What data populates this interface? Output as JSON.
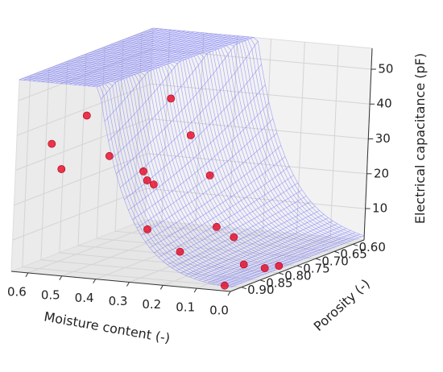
{
  "chart_data": {
    "type": "scatter",
    "subtype": "3d-surface-with-scatter",
    "xlabel": "Moisture content (-)",
    "ylabel": "Porosity (-)",
    "zlabel": "Electrical capacitance (pF)",
    "x_ticks": [
      "0.0",
      "0.1",
      "0.2",
      "0.3",
      "0.4",
      "0.5",
      "0.6"
    ],
    "y_ticks": [
      "0.60",
      "0.65",
      "0.70",
      "0.75",
      "0.80",
      "0.85",
      "0.90"
    ],
    "z_ticks": [
      "10",
      "20",
      "30",
      "40",
      "50"
    ],
    "xlim": [
      0,
      0.65
    ],
    "ylim": [
      0.57,
      0.93
    ],
    "zlim": [
      1,
      56
    ],
    "grid": true,
    "surface_color": "#6b6bff",
    "point_color": "#e8001c",
    "points": [
      {
        "x": 0.5,
        "y": 0.88,
        "z": 45
      },
      {
        "x": 0.34,
        "y": 0.8,
        "z": 48
      },
      {
        "x": 0.6,
        "y": 0.88,
        "z": 36
      },
      {
        "x": 0.45,
        "y": 0.86,
        "z": 33
      },
      {
        "x": 0.32,
        "y": 0.76,
        "z": 36
      },
      {
        "x": 0.38,
        "y": 0.83,
        "z": 28
      },
      {
        "x": 0.59,
        "y": 0.86,
        "z": 28
      },
      {
        "x": 0.4,
        "y": 0.8,
        "z": 24
      },
      {
        "x": 0.38,
        "y": 0.8,
        "z": 23
      },
      {
        "x": 0.28,
        "y": 0.74,
        "z": 24
      },
      {
        "x": 0.35,
        "y": 0.84,
        "z": 12
      },
      {
        "x": 0.2,
        "y": 0.79,
        "z": 12
      },
      {
        "x": 0.18,
        "y": 0.76,
        "z": 8
      },
      {
        "x": 0.24,
        "y": 0.85,
        "z": 7
      },
      {
        "x": 0.05,
        "y": 0.85,
        "z": 5
      },
      {
        "x": 0.05,
        "y": 0.9,
        "z": 1
      },
      {
        "x": 0.0,
        "y": 0.8,
        "z": 3
      },
      {
        "x": 0.02,
        "y": 0.82,
        "z": 3
      }
    ]
  }
}
